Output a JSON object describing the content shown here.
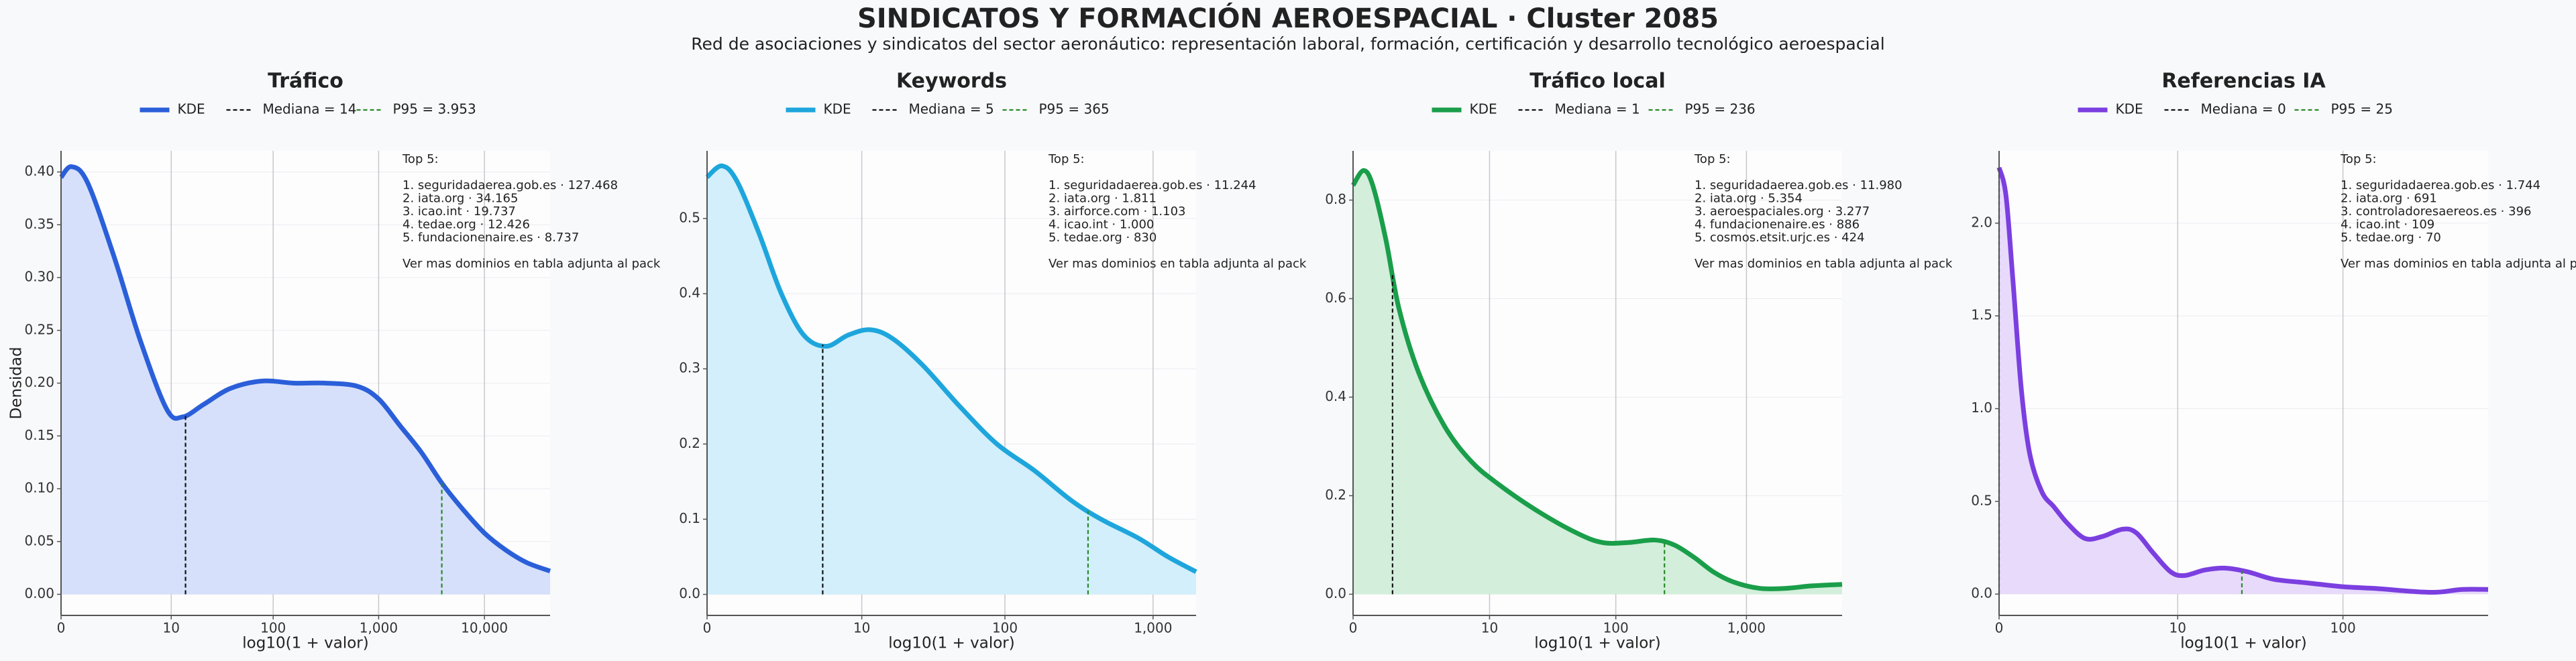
{
  "title": "SINDICATOS Y FORMACIÓN AEROESPACIAL · Cluster 2085",
  "subtitle": "Red de asociaciones y sindicatos del sector aeronáutico: representación laboral, formación, certificación y desarrollo tecnológico aeroespacial",
  "chart_data": [
    {
      "type": "area",
      "title": "Tráfico",
      "xlabel": "log10(1 + valor)",
      "ylabel": "Densidad",
      "grid": true,
      "xlim": [
        0,
        4.62
      ],
      "ylim": [
        -0.02,
        0.42
      ],
      "xticks": [
        0,
        {
          "value": 1.041,
          "label": "10"
        },
        {
          "value": 2.004,
          "label": "100"
        },
        {
          "value": 3.0004,
          "label": "1,000"
        },
        {
          "value": 4.0,
          "label": "10,000"
        }
      ],
      "yticks": [
        {
          "value": 0,
          "label": "0.00"
        },
        {
          "value": 0.05,
          "label": "0.05"
        },
        {
          "value": 0.1,
          "label": "0.10"
        },
        {
          "value": 0.15,
          "label": "0.15"
        },
        {
          "value": 0.2,
          "label": "0.20"
        },
        {
          "value": 0.25,
          "label": "0.25"
        },
        {
          "value": 0.3,
          "label": "0.30"
        },
        {
          "value": 0.35,
          "label": "0.35"
        },
        {
          "value": 0.4,
          "label": "0.40"
        }
      ],
      "series": [
        {
          "name": "KDE",
          "color": "#2b5fd9",
          "fill": "#d6e0fa",
          "x": [
            0,
            0.1,
            0.25,
            0.5,
            0.75,
            1.0,
            1.15,
            1.35,
            1.6,
            1.9,
            2.2,
            2.5,
            2.8,
            3.0,
            3.2,
            3.4,
            3.6,
            3.8,
            4.0,
            4.2,
            4.4,
            4.62
          ],
          "values": [
            0.395,
            0.405,
            0.39,
            0.32,
            0.24,
            0.175,
            0.168,
            0.18,
            0.195,
            0.202,
            0.2,
            0.2,
            0.197,
            0.185,
            0.16,
            0.135,
            0.105,
            0.08,
            0.058,
            0.042,
            0.03,
            0.022
          ]
        }
      ],
      "reference_lines": [
        {
          "name": "Mediana = 14",
          "color": "#111111",
          "x": 1.176
        },
        {
          "name": "P95 = 3.953",
          "color": "#2a8a2a",
          "x": 3.597
        }
      ],
      "annotation": {
        "heading": "Top 5:",
        "items": [
          "1. seguridadaerea.gob.es · 127.468",
          "2. iata.org · 34.165",
          "3. icao.int · 19.737",
          "4. tedae.org · 12.426",
          "5. fundacionenaire.es · 8.737"
        ],
        "footer": "Ver mas dominios en tabla adjunta al pack"
      }
    },
    {
      "type": "area",
      "title": "Keywords",
      "xlabel": "log10(1 + valor)",
      "grid": true,
      "xlim": [
        0,
        3.29
      ],
      "ylim": [
        -0.028,
        0.59
      ],
      "xticks": [
        0,
        {
          "value": 1.041,
          "label": "10"
        },
        {
          "value": 2.004,
          "label": "100"
        },
        {
          "value": 3.0004,
          "label": "1,000"
        }
      ],
      "yticks": [
        {
          "value": 0,
          "label": "0.0"
        },
        0.1,
        0.2,
        0.3,
        0.4,
        0.5
      ],
      "series": [
        {
          "name": "KDE",
          "color": "#1ea6dc",
          "fill": "#d2effb",
          "x": [
            0,
            0.1,
            0.2,
            0.35,
            0.5,
            0.65,
            0.8,
            0.95,
            1.1,
            1.25,
            1.45,
            1.7,
            1.95,
            2.2,
            2.45,
            2.65,
            2.9,
            3.1,
            3.29
          ],
          "values": [
            0.555,
            0.57,
            0.55,
            0.48,
            0.4,
            0.345,
            0.33,
            0.345,
            0.352,
            0.34,
            0.305,
            0.25,
            0.2,
            0.165,
            0.125,
            0.1,
            0.075,
            0.05,
            0.03
          ]
        }
      ],
      "reference_lines": [
        {
          "name": "Mediana = 5",
          "color": "#111111",
          "x": 0.778
        },
        {
          "name": "P95 = 365",
          "color": "#2a8a2a",
          "x": 2.563
        }
      ],
      "annotation": {
        "heading": "Top 5:",
        "items": [
          "1. seguridadaerea.gob.es · 11.244",
          "2. iata.org · 1.811",
          "3. airforce.com · 1.103",
          "4. icao.int · 1.000",
          "5. tedae.org · 830"
        ],
        "footer": "Ver mas dominios en tabla adjunta al pack"
      }
    },
    {
      "type": "area",
      "title": "Tráfico local",
      "xlabel": "log10(1 + valor)",
      "grid": true,
      "xlim": [
        0,
        3.73
      ],
      "ylim": [
        -0.043,
        0.9
      ],
      "xticks": [
        0,
        {
          "value": 1.041,
          "label": "10"
        },
        {
          "value": 2.004,
          "label": "100"
        },
        {
          "value": 3.0004,
          "label": "1,000"
        }
      ],
      "yticks": [
        {
          "value": 0,
          "label": "0.0"
        },
        0.2,
        0.4,
        0.6,
        0.8
      ],
      "series": [
        {
          "name": "KDE",
          "color": "#1a9e4a",
          "fill": "#d3eedb",
          "x": [
            0,
            0.08,
            0.15,
            0.25,
            0.35,
            0.5,
            0.7,
            0.9,
            1.1,
            1.4,
            1.7,
            1.9,
            2.1,
            2.3,
            2.45,
            2.6,
            2.75,
            2.9,
            3.1,
            3.3,
            3.5,
            3.73
          ],
          "values": [
            0.83,
            0.86,
            0.83,
            0.72,
            0.58,
            0.45,
            0.34,
            0.27,
            0.225,
            0.17,
            0.125,
            0.105,
            0.105,
            0.11,
            0.1,
            0.075,
            0.045,
            0.025,
            0.012,
            0.012,
            0.017,
            0.02
          ]
        }
      ],
      "reference_lines": [
        {
          "name": "Mediana = 1",
          "color": "#111111",
          "x": 0.301
        },
        {
          "name": "P95 = 236",
          "color": "#2a8a2a",
          "x": 2.375
        }
      ],
      "annotation": {
        "heading": "Top 5:",
        "items": [
          "1. seguridadaerea.gob.es · 11.980",
          "2. iata.org · 5.354",
          "3. aeroespaciales.org · 3.277",
          "4. fundacionenaire.es · 886",
          "5. cosmos.etsit.urjc.es · 424"
        ],
        "footer": "Ver mas dominios en tabla adjunta al pack"
      }
    },
    {
      "type": "area",
      "title": "Referencias IA",
      "xlabel": "log10(1 + valor)",
      "grid": true,
      "xlim": [
        0,
        2.85
      ],
      "ylim": [
        -0.115,
        2.39
      ],
      "xticks": [
        0,
        {
          "value": 1.041,
          "label": "10"
        },
        {
          "value": 2.004,
          "label": "100"
        }
      ],
      "yticks": [
        {
          "value": 0,
          "label": "0.0"
        },
        0.5,
        {
          "value": 1,
          "label": "1.0"
        },
        1.5,
        {
          "value": 2,
          "label": "2.0"
        }
      ],
      "series": [
        {
          "name": "KDE",
          "color": "#7b3fe0",
          "fill": "#e7dafb",
          "x": [
            0,
            0.04,
            0.08,
            0.13,
            0.18,
            0.25,
            0.32,
            0.4,
            0.5,
            0.6,
            0.72,
            0.8,
            0.9,
            1.0,
            1.08,
            1.2,
            1.32,
            1.45,
            1.6,
            1.8,
            2.0,
            2.2,
            2.4,
            2.55,
            2.7,
            2.85
          ],
          "values": [
            2.3,
            2.15,
            1.7,
            1.1,
            0.75,
            0.55,
            0.47,
            0.38,
            0.3,
            0.31,
            0.35,
            0.33,
            0.22,
            0.12,
            0.1,
            0.13,
            0.14,
            0.12,
            0.08,
            0.06,
            0.04,
            0.03,
            0.015,
            0.01,
            0.025,
            0.025
          ]
        }
      ],
      "reference_lines": [
        {
          "name": "Mediana = 0",
          "color": "#111111",
          "x": 0
        },
        {
          "name": "P95 = 25",
          "color": "#2a8a2a",
          "x": 1.415
        }
      ],
      "annotation": {
        "heading": "Top 5:",
        "items": [
          "1. seguridadaerea.gob.es · 1.744",
          "2. iata.org · 691",
          "3. controladoresaereos.es · 396",
          "4. icao.int · 109",
          "5. tedae.org · 70"
        ],
        "footer": "Ver mas dominios en tabla adjunta al pack"
      }
    }
  ]
}
